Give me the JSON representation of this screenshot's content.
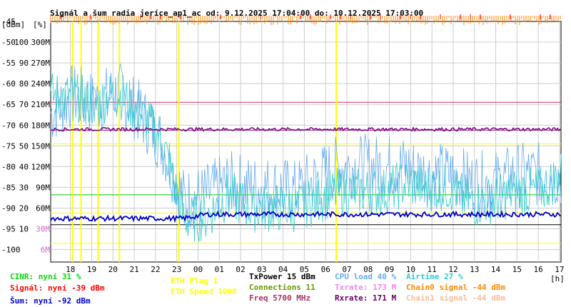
{
  "chart_data": {
    "type": "line",
    "title": "Signál a šum radia jeríce_ap1_ac od: 9.12.2025 17:04:00 do: 10.12.2025 17:03:00",
    "y_units_left": "[dBm]",
    "y_units_right": "[%]",
    "x_unit": "[h]",
    "x_ticks": [
      "18",
      "19",
      "20",
      "21",
      "22",
      "23",
      "00",
      "01",
      "02",
      "03",
      "04",
      "05",
      "06",
      "07",
      "08",
      "09",
      "10",
      "11",
      "12",
      "13",
      "14",
      "15",
      "16",
      "17"
    ],
    "y_ticks_dbm": [
      "-45",
      "-50",
      "-55",
      "-60",
      "-65",
      "-70",
      "-75",
      "-80",
      "-85",
      "-90",
      "-95",
      "-100"
    ],
    "y_ticks_pct": [
      "100",
      "90",
      "80",
      "70",
      "60",
      "50",
      "40",
      "30",
      "20",
      "10"
    ],
    "y_ticks_rate": [
      "300M",
      "270M",
      "240M",
      "210M",
      "180M",
      "150M",
      "120M",
      "90M",
      "60M",
      "30M",
      "6M"
    ],
    "ylim_dbm": [
      -103,
      -45
    ],
    "series": [
      {
        "name": "CINR",
        "color": "#00dd00"
      },
      {
        "name": "Signál",
        "color": "#ff0000"
      },
      {
        "name": "Šum",
        "color": "#0000cc",
        "values": [
          -92.5,
          -92.5,
          -92.5,
          -92.5,
          -92.5,
          -92.5,
          -92.5,
          -91.5,
          -91.5,
          -91.5,
          -91.5,
          -91.5,
          -91.5,
          -91.5,
          -91.5,
          -91.5,
          -91.5,
          -91.5,
          -91.5,
          -91.5,
          -91.5,
          -91.5,
          -91.5,
          -91.5
        ]
      },
      {
        "name": "Txrate",
        "color": "#33cccc",
        "values": [
          -63,
          -63,
          -65,
          -62,
          -67,
          -73,
          -93,
          -92,
          -87,
          -90,
          -90,
          -90,
          -88,
          -86,
          -86,
          -86,
          -84,
          -85,
          -85,
          -89,
          -88,
          -86,
          -86,
          -82
        ]
      },
      {
        "name": "Rxrate",
        "color": "#800080",
        "values": [
          -71,
          -71,
          -71,
          -71,
          -71,
          -71,
          -71,
          -71,
          -71,
          -71,
          -71,
          -71,
          -71,
          -71,
          -71,
          -71,
          -71,
          -71,
          -71,
          -71,
          -71,
          -71,
          -71,
          -71
        ]
      },
      {
        "name": "CPU load",
        "color": "#66aaee",
        "values": [
          -67,
          -63,
          -65,
          -62,
          -67,
          -74,
          -88,
          -87,
          -84,
          -85,
          -85,
          -86,
          -83,
          -80,
          -80,
          -80,
          -80,
          -82,
          -82,
          -84,
          -84,
          -82,
          -82,
          -82
        ]
      },
      {
        "name": "Chain0 signal",
        "color": "#ff8800"
      }
    ],
    "markers": {
      "eth_plug_color": "#ffff00",
      "eth_plug_hours": [
        18.1,
        18.5,
        19.3,
        20.3,
        23.1,
        6.5
      ],
      "hlines": [
        {
          "dbm": -64.5,
          "color": "#cc3366"
        },
        {
          "dbm": -71.2,
          "color": "#800080"
        },
        {
          "dbm": -74.5,
          "color": "#ffff00"
        },
        {
          "dbm": -86.8,
          "color": "#00cc00"
        },
        {
          "dbm": -91.2,
          "color": "#ffff00"
        },
        {
          "dbm": -94.0,
          "color": "#000000"
        },
        {
          "dbm": -98.5,
          "color": "#ffff00"
        }
      ]
    }
  },
  "legend": {
    "cinr": "CINR: nyní 31 %",
    "signal": "Signál: nyní -39 dBm",
    "noise": "Šum: nyní -92 dBm",
    "eth_plug": "ETH Plug 1",
    "eth_speed": "ETH Speed 1000",
    "txpower": "TxPower 15 dBm",
    "connections": "Connections 11",
    "freq": "Freq 5700 MHz",
    "cpu": "CPU load 40 %",
    "txrate": "Txrate: 173 M",
    "rxrate": "Rxrate: 171 M",
    "airtime": "Airtime 27 %",
    "chain0": "Chain0 signal -44 dBm",
    "chain1": "Chain1 signal -44 dBm"
  },
  "colors": {
    "cinr": "#00dd00",
    "signal": "#ff0000",
    "noise": "#0000cc",
    "eth": "#ffff00",
    "txpower": "#000000",
    "connections": "#669900",
    "freq": "#aa3366",
    "cpu": "#66aaee",
    "txrate": "#ee88ee",
    "rxrate": "#660066",
    "airtime": "#33cccc",
    "chain0": "#ff8800",
    "chain1": "#ffbb99"
  }
}
